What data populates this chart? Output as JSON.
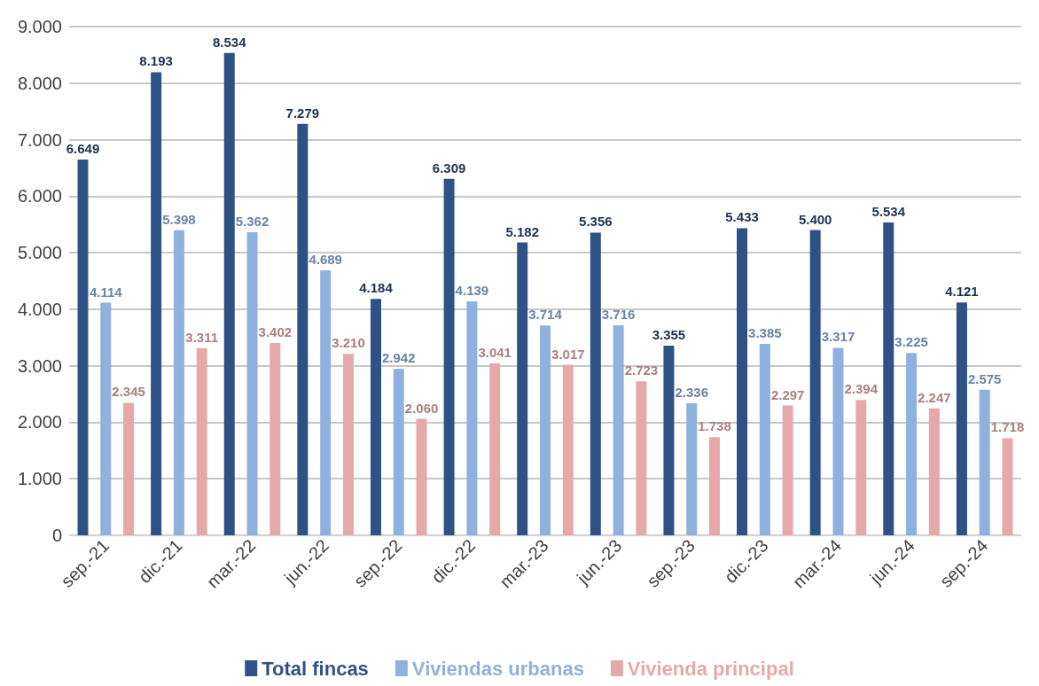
{
  "chart_data": {
    "type": "bar",
    "categories": [
      "sep.-21",
      "dic.-21",
      "mar.-22",
      "jun.-22",
      "sep.-22",
      "dic.-22",
      "mar.-23",
      "jun.-23",
      "sep.-23",
      "dic.-23",
      "mar.-24",
      "jun.-24",
      "sep.-24"
    ],
    "series": [
      {
        "name": "Total fincas",
        "color": "#2e5286",
        "values": [
          6649,
          8193,
          8534,
          7279,
          4184,
          6309,
          5182,
          5356,
          3355,
          5433,
          5400,
          5534,
          4121
        ],
        "value_labels": [
          "6.649",
          "8.193",
          "8.534",
          "7.279",
          "4.184",
          "6.309",
          "5.182",
          "5.356",
          "3.355",
          "5.433",
          "5.400",
          "5.534",
          "4.121"
        ]
      },
      {
        "name": "Viviendas urbanas",
        "color": "#8fb1dd",
        "values": [
          4114,
          5398,
          5362,
          4689,
          2942,
          4139,
          3714,
          3716,
          2336,
          3385,
          3317,
          3225,
          2575
        ],
        "value_labels": [
          "4.114",
          "5.398",
          "5.362",
          "4.689",
          "2.942",
          "4.139",
          "3.714",
          "3.716",
          "2.336",
          "3.385",
          "3.317",
          "3.225",
          "2.575"
        ]
      },
      {
        "name": "Vivienda principal",
        "color": "#e6a9a9",
        "values": [
          2345,
          3311,
          3402,
          3210,
          2060,
          3041,
          3017,
          2723,
          1738,
          2297,
          2394,
          2247,
          1718
        ],
        "value_labels": [
          "2.345",
          "3.311",
          "3.402",
          "3.210",
          "2.060",
          "3.041",
          "3.017",
          "2.723",
          "1.738",
          "2.297",
          "2.394",
          "2.247",
          "1.718"
        ]
      }
    ],
    "ylim": [
      0,
      9000
    ],
    "yticks": [
      0,
      {
        "value": 1000,
        "label": "1.000"
      },
      {
        "value": 2000,
        "label": "2.000"
      },
      {
        "value": 3000,
        "label": "3.000"
      },
      {
        "value": 4000,
        "label": "4.000"
      },
      {
        "value": 5000,
        "label": "5.000"
      },
      {
        "value": 6000,
        "label": "6.000"
      },
      {
        "value": 7000,
        "label": "7.000"
      },
      {
        "value": 8000,
        "label": "8.000"
      },
      {
        "value": 9000,
        "label": "9.000"
      }
    ],
    "grid": "y",
    "legend": "bottom"
  }
}
